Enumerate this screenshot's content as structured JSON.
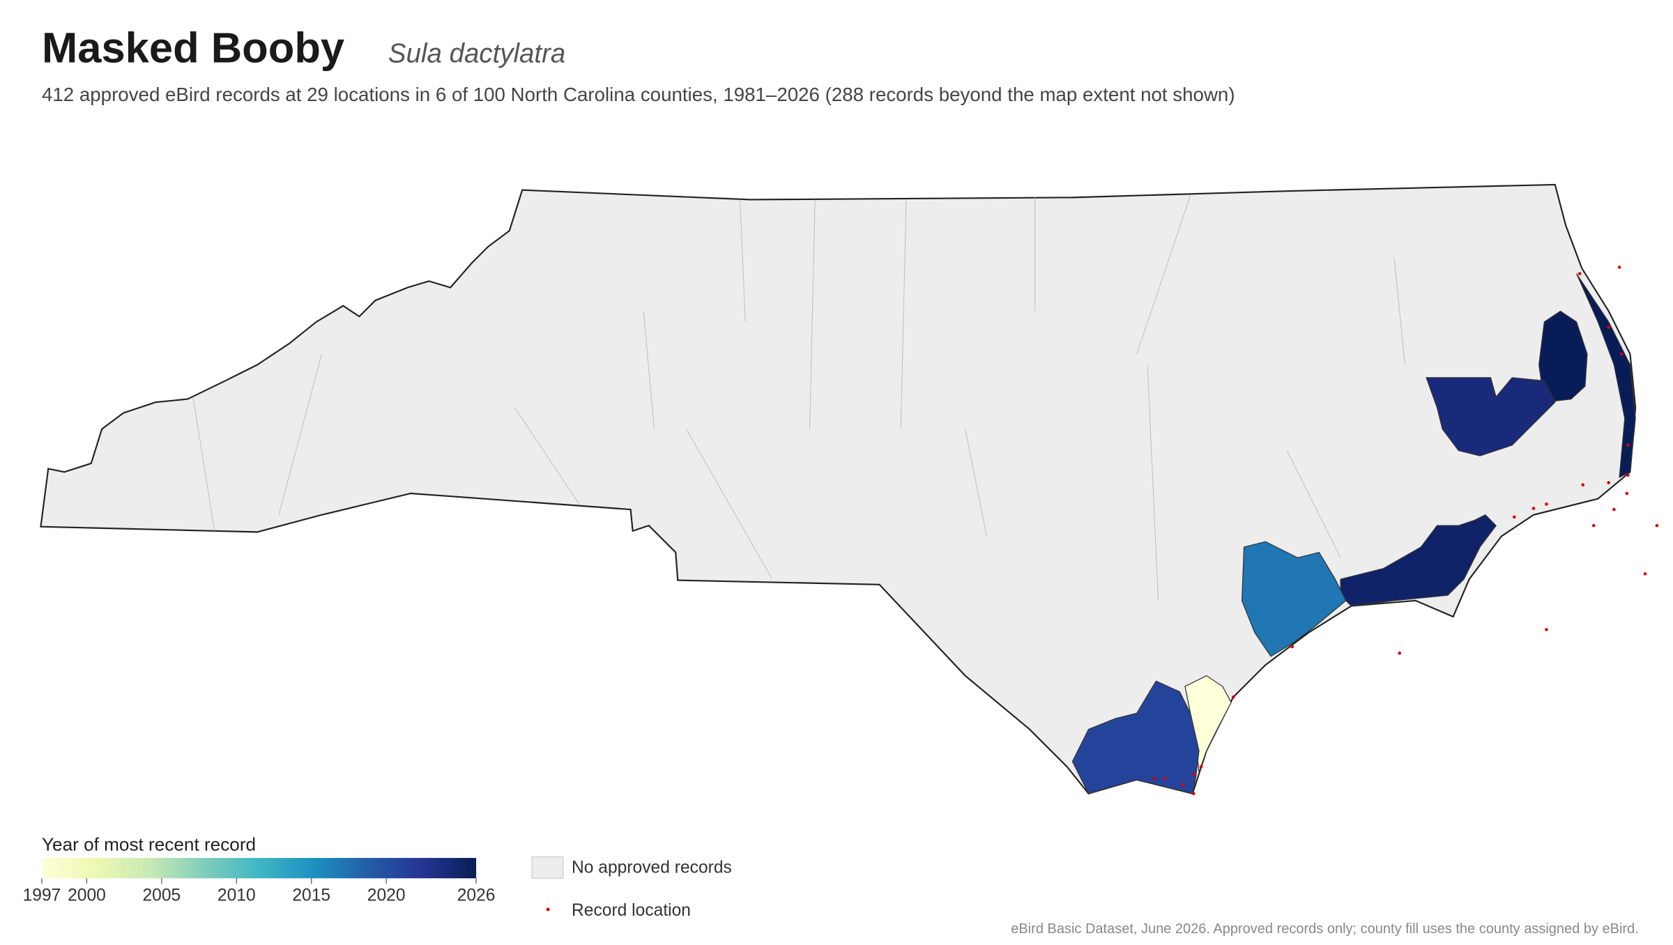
{
  "header": {
    "title": "Masked Booby",
    "scientific_name": "Sula dactylatra",
    "subtitle": "412 approved eBird records at 29 locations in 6 of 100 North Carolina counties, 1981–2026 (288 records beyond the map extent not shown)"
  },
  "county_years": [
    2026,
    2024,
    2025,
    2017,
    1997,
    2021
  ],
  "legend": {
    "title": "Year of most recent record",
    "range": [
      1997,
      2026
    ],
    "ticks": [
      1997,
      2000,
      2005,
      2010,
      2015,
      2020,
      2026
    ],
    "no_records": "No approved records",
    "record_location": "Record location"
  },
  "footer": "eBird Basic Dataset, June 2026. Approved records only; county fill uses the county assigned by eBird."
}
